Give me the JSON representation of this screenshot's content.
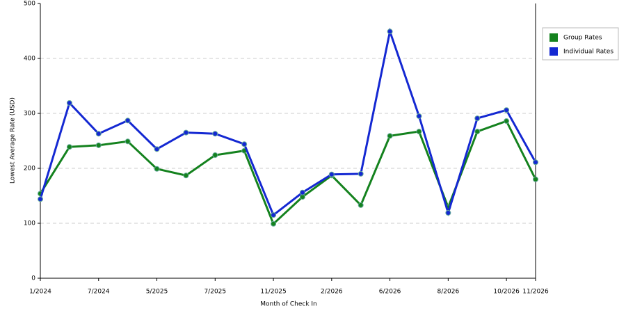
{
  "chart_data": {
    "type": "line",
    "x_label": "Month of Check In",
    "y_label": "Lowest Average Rate (USD)",
    "categories": [
      "1/2024",
      null,
      "7/2024",
      null,
      "5/2025",
      null,
      "7/2025",
      null,
      "11/2025",
      null,
      "2/2026",
      null,
      "6/2026",
      null,
      "8/2026",
      null,
      "10/2026",
      "11/2026"
    ],
    "series": [
      {
        "name": "Group Rates",
        "color": "#14821e",
        "values": [
          154,
          239,
          242,
          249,
          199,
          187,
          224,
          232,
          99,
          148,
          187,
          133,
          259,
          267,
          129,
          267,
          286,
          180
        ]
      },
      {
        "name": "Individual Rates",
        "color": "#1428d2",
        "values": [
          144,
          319,
          263,
          287,
          235,
          265,
          263,
          244,
          115,
          156,
          189,
          190,
          449,
          295,
          119,
          291,
          306,
          211
        ]
      }
    ],
    "ylim": [
      0,
      500
    ],
    "yticks": [
      0,
      100,
      200,
      300,
      400,
      500
    ],
    "grid": true,
    "legend": "right"
  }
}
